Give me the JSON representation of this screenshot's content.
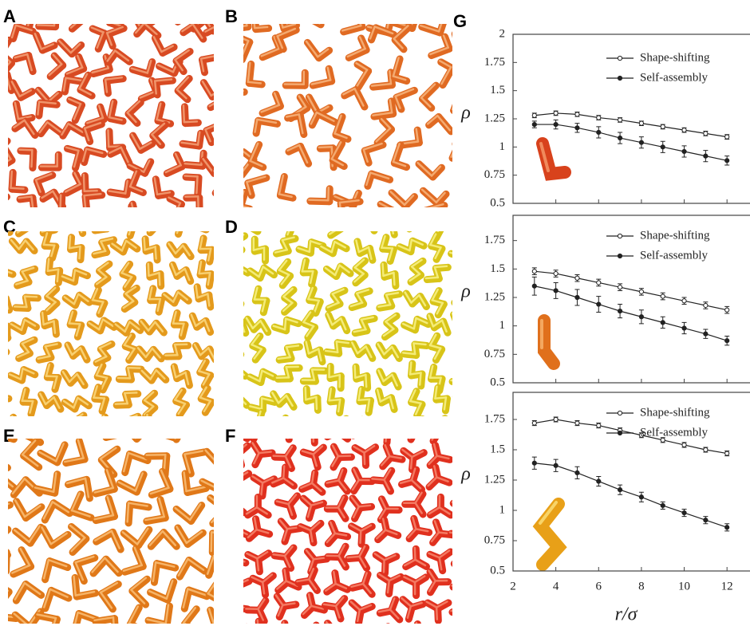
{
  "panels": [
    {
      "label": "A"
    },
    {
      "label": "B"
    },
    {
      "label": "C"
    },
    {
      "label": "D"
    },
    {
      "label": "E"
    },
    {
      "label": "F"
    },
    {
      "label": "G"
    }
  ],
  "chart_data": [
    {
      "type": "line",
      "y_label": "ρ",
      "xlim": [
        2,
        13
      ],
      "ylim": [
        0.5,
        2
      ],
      "yticks": [
        0.5,
        0.75,
        1,
        1.25,
        1.5,
        1.75,
        2
      ],
      "legend": "upper right",
      "series": [
        {
          "name": "Shape-shifting",
          "color": "#222222",
          "marker": "open",
          "x": [
            3,
            4,
            5,
            6,
            7,
            8,
            9,
            10,
            11,
            12
          ],
          "values": [
            1.28,
            1.3,
            1.29,
            1.26,
            1.24,
            1.21,
            1.18,
            1.15,
            1.12,
            1.09
          ],
          "errors": [
            0.02,
            0.02,
            0.02,
            0.02,
            0.02,
            0.02,
            0.02,
            0.02,
            0.02,
            0.02
          ]
        },
        {
          "name": "Self-assembly",
          "color": "#222222",
          "marker": "filled",
          "x": [
            3,
            4,
            5,
            6,
            7,
            8,
            9,
            10,
            11,
            12
          ],
          "values": [
            1.2,
            1.2,
            1.17,
            1.13,
            1.08,
            1.04,
            1.0,
            0.96,
            0.92,
            0.88
          ],
          "errors": [
            0.03,
            0.04,
            0.04,
            0.05,
            0.05,
            0.05,
            0.05,
            0.05,
            0.05,
            0.04
          ]
        }
      ]
    },
    {
      "type": "line",
      "y_label": "ρ",
      "xlim": [
        2,
        13
      ],
      "ylim": [
        0.5,
        2
      ],
      "yticks": [
        0.5,
        0.75,
        1,
        1.25,
        1.5,
        1.75
      ],
      "legend": "upper right",
      "series": [
        {
          "name": "Shape-shifting",
          "color": "#222222",
          "marker": "open",
          "x": [
            3,
            4,
            5,
            6,
            7,
            8,
            9,
            10,
            11,
            12
          ],
          "values": [
            1.48,
            1.46,
            1.42,
            1.38,
            1.34,
            1.3,
            1.26,
            1.22,
            1.18,
            1.14
          ],
          "errors": [
            0.03,
            0.03,
            0.03,
            0.03,
            0.03,
            0.03,
            0.03,
            0.03,
            0.03,
            0.03
          ]
        },
        {
          "name": "Self-assembly",
          "color": "#222222",
          "marker": "filled",
          "x": [
            3,
            4,
            5,
            6,
            7,
            8,
            9,
            10,
            11,
            12
          ],
          "values": [
            1.35,
            1.31,
            1.25,
            1.19,
            1.13,
            1.08,
            1.03,
            0.98,
            0.93,
            0.87
          ],
          "errors": [
            0.08,
            0.07,
            0.07,
            0.07,
            0.06,
            0.06,
            0.05,
            0.05,
            0.04,
            0.04
          ]
        }
      ]
    },
    {
      "type": "line",
      "y_label": "ρ",
      "x_label": "r/σ",
      "xlim": [
        2,
        13
      ],
      "ylim": [
        0.5,
        2
      ],
      "xticks": [
        2,
        4,
        6,
        8,
        10,
        12
      ],
      "yticks": [
        0.5,
        0.75,
        1,
        1.25,
        1.5,
        1.75
      ],
      "legend": "upper right",
      "series": [
        {
          "name": "Shape-shifting",
          "color": "#222222",
          "marker": "open",
          "x": [
            3,
            4,
            5,
            6,
            7,
            8,
            9,
            10,
            11,
            12
          ],
          "values": [
            1.72,
            1.75,
            1.72,
            1.7,
            1.66,
            1.62,
            1.58,
            1.54,
            1.5,
            1.47
          ],
          "errors": [
            0.02,
            0.02,
            0.02,
            0.02,
            0.02,
            0.02,
            0.02,
            0.02,
            0.02,
            0.02
          ]
        },
        {
          "name": "Self-assembly",
          "color": "#222222",
          "marker": "filled",
          "x": [
            3,
            4,
            5,
            6,
            7,
            8,
            9,
            10,
            11,
            12
          ],
          "values": [
            1.39,
            1.37,
            1.31,
            1.24,
            1.17,
            1.11,
            1.04,
            0.98,
            0.92,
            0.86
          ],
          "errors": [
            0.05,
            0.05,
            0.05,
            0.04,
            0.04,
            0.04,
            0.03,
            0.03,
            0.03,
            0.03
          ]
        }
      ]
    }
  ]
}
